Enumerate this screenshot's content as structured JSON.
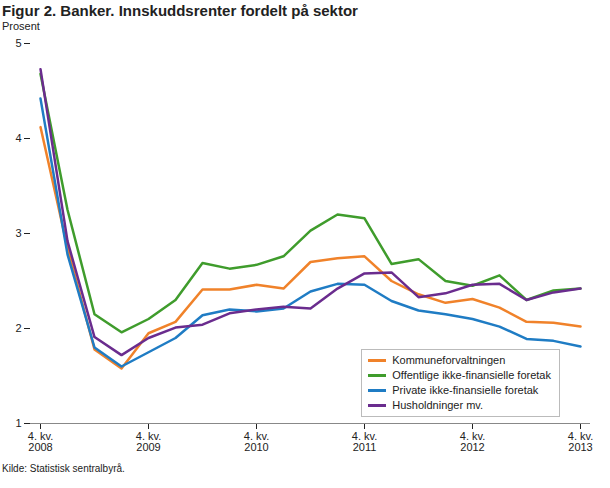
{
  "chart_data": {
    "type": "line",
    "title": "Figur 2. Banker. Innskuddsrenter fordelt på sektor",
    "subtitle": "Prosent",
    "source": "Kilde: Statistisk sentralbyrå.",
    "categories": [
      "4. kv.\n2008",
      null,
      null,
      null,
      "4. kv.\n2009",
      null,
      null,
      null,
      "4. kv.\n2010",
      null,
      null,
      null,
      "4. kv.\n2011",
      null,
      null,
      null,
      "4. kv.\n2012",
      null,
      null,
      null,
      "4. kv.\n2013"
    ],
    "series": [
      {
        "name": "Kommuneforvaltningen",
        "color": "#f0822a",
        "values": [
          4.12,
          2.85,
          1.78,
          1.58,
          1.95,
          2.07,
          2.41,
          2.41,
          2.46,
          2.42,
          2.7,
          2.74,
          2.76,
          2.5,
          2.36,
          2.27,
          2.31,
          2.22,
          2.07,
          2.06,
          2.02
        ]
      },
      {
        "name": "Offentlige ikke-finansielle foretak",
        "color": "#3f9c2c",
        "values": [
          4.68,
          3.25,
          2.15,
          1.96,
          2.1,
          2.3,
          2.69,
          2.63,
          2.67,
          2.76,
          3.03,
          3.2,
          3.16,
          2.68,
          2.73,
          2.5,
          2.45,
          2.56,
          2.3,
          2.4,
          2.42
        ]
      },
      {
        "name": "Private ikke-finansielle foretak",
        "color": "#1f7cc4",
        "values": [
          4.42,
          2.78,
          1.8,
          1.6,
          1.75,
          1.9,
          2.14,
          2.2,
          2.18,
          2.21,
          2.39,
          2.47,
          2.46,
          2.29,
          2.19,
          2.15,
          2.1,
          2.02,
          1.89,
          1.87,
          1.81
        ]
      },
      {
        "name": "Husholdninger mv.",
        "color": "#6a2c8e",
        "values": [
          4.73,
          2.92,
          1.91,
          1.72,
          1.9,
          2.01,
          2.04,
          2.16,
          2.2,
          2.23,
          2.21,
          2.42,
          2.58,
          2.59,
          2.33,
          2.37,
          2.46,
          2.47,
          2.3,
          2.38,
          2.42
        ]
      }
    ],
    "ylim": [
      1,
      5
    ],
    "yticks": [
      1,
      2,
      3,
      4,
      5
    ],
    "grid": false,
    "legend": "bottom-right"
  }
}
